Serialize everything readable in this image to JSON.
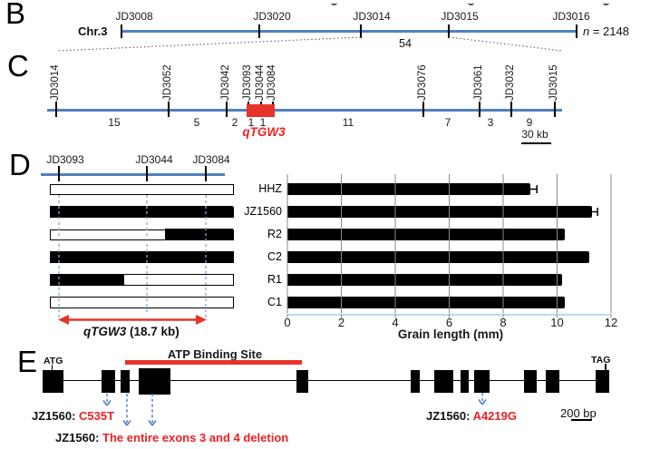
{
  "colors": {
    "map_blue": "#4f81bd",
    "red": "#e8332b",
    "red_text": "#ed2024",
    "arrow_blue": "#4a7cc9",
    "dash_blue": "#7aa9dc",
    "grid_gray": "#8a8a8a",
    "axis_lightblue": "#bdd7ee",
    "dotted_gray": "#5f5f5f",
    "bar_black": "#000000"
  },
  "panelB": {
    "label": "B",
    "chromosome": "Chr.3",
    "markers": [
      "JD3008",
      "JD3020",
      "JD3014",
      "JD3015",
      "JD3016"
    ],
    "population_n_italic": "n",
    "population_n_value": " = 2148",
    "recombinants_between": "54"
  },
  "panelC": {
    "label": "C",
    "markers": [
      "JD3014",
      "JD3052",
      "JD3042",
      "JD3093",
      "JD3044",
      "JD3084",
      "JD3076",
      "JD3061",
      "JD3032",
      "JD3015"
    ],
    "interval_counts": [
      "15",
      "5",
      "2",
      "1",
      "1",
      "11",
      "7",
      "3",
      "9"
    ],
    "qtl_name": "qTGW3",
    "scale_label": "30 kb"
  },
  "panelD": {
    "label": "D",
    "markers": [
      "JD3093",
      "JD3044",
      "JD3084"
    ],
    "lines": [
      {
        "name": "HHZ",
        "segments": [
          {
            "type": "open",
            "from": 0,
            "to": 1
          }
        ]
      },
      {
        "name": "JZ1560",
        "segments": [
          {
            "type": "filled",
            "from": 0,
            "to": 1
          }
        ]
      },
      {
        "name": "R2",
        "segments": [
          {
            "type": "open",
            "from": 0,
            "to": 0.627
          },
          {
            "type": "filled",
            "from": 0.627,
            "to": 1
          }
        ]
      },
      {
        "name": "C2",
        "segments": [
          {
            "type": "filled",
            "from": 0,
            "to": 1
          }
        ]
      },
      {
        "name": "R1",
        "segments": [
          {
            "type": "filled",
            "from": 0,
            "to": 0.405
          },
          {
            "type": "open",
            "from": 0.405,
            "to": 1
          }
        ]
      },
      {
        "name": "C1",
        "segments": [
          {
            "type": "open",
            "from": 0,
            "to": 1
          }
        ]
      }
    ],
    "region_name_italic": "qTGW3",
    "region_size": " (18.7 kb)"
  },
  "chart_data": {
    "type": "bar",
    "orientation": "horizontal",
    "categories": [
      "HHZ",
      "JZ1560",
      "R2",
      "C2",
      "R1",
      "C1"
    ],
    "values": [
      9.0,
      11.3,
      10.3,
      11.2,
      10.2,
      10.3
    ],
    "errors": [
      0.25,
      0.2,
      0,
      0,
      0,
      0
    ],
    "title": "",
    "xlabel": "Grain length (mm)",
    "ylabel": "",
    "xlim": [
      0,
      12
    ],
    "xticks": [
      0,
      2,
      4,
      6,
      8,
      10,
      12
    ],
    "grid": true,
    "legend": false
  },
  "panelE": {
    "label": "E",
    "start_codon": "ATG",
    "stop_codon": "TAG",
    "domain_label": "ATP Binding Site",
    "exon_count": 12,
    "mutations": [
      {
        "line": "JZ1560",
        "sep": ": ",
        "change": "C535T"
      },
      {
        "line": "JZ1560",
        "sep": ": ",
        "change": "The entire exons 3 and 4 deletion"
      },
      {
        "line": "JZ1560",
        "sep": ": ",
        "change": "A4219G"
      }
    ],
    "scale_label": "200 bp"
  }
}
